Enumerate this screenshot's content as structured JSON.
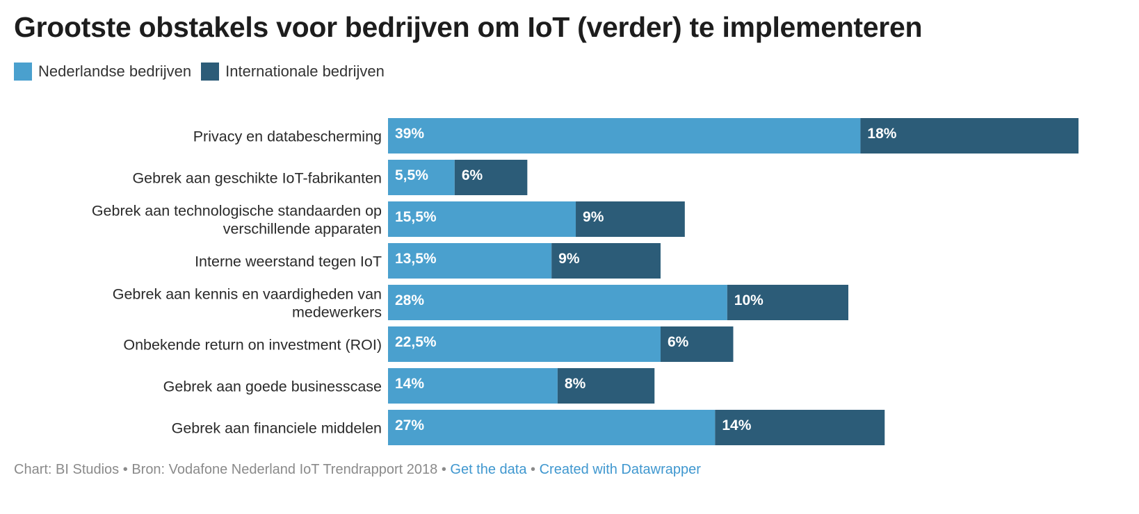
{
  "title": "Grootste obstakels voor bedrijven om IoT (verder) te implementeren",
  "colors": {
    "nederlandse": "#4aa0ce",
    "internationale": "#2c5c78",
    "bar_text": "#ffffff",
    "label_text": "#2a2a2a"
  },
  "chart_data": {
    "type": "bar",
    "orientation": "horizontal",
    "stacked": true,
    "title": "Grootste obstakels voor bedrijven om IoT (verder) te implementeren",
    "legend_position": "top-left",
    "categories": [
      [
        "Privacy en databescherming"
      ],
      [
        "Gebrek aan geschikte IoT-fabrikanten"
      ],
      [
        "Gebrek aan technologische standaarden op",
        "verschillende apparaten"
      ],
      [
        "Interne weerstand tegen IoT"
      ],
      [
        "Gebrek aan kennis en vaardigheden van",
        "medewerkers"
      ],
      [
        "Onbekende return on investment (ROI)"
      ],
      [
        "Gebrek aan goede businesscase"
      ],
      [
        "Gebrek aan financiele middelen"
      ]
    ],
    "series": [
      {
        "name": "Nederlandse bedrijven",
        "values": [
          39,
          5.5,
          15.5,
          13.5,
          28,
          22.5,
          14,
          27
        ],
        "labels": [
          "39%",
          "5,5%",
          "15,5%",
          "13,5%",
          "28%",
          "22,5%",
          "14%",
          "27%"
        ]
      },
      {
        "name": "Internationale bedrijven",
        "values": [
          18,
          6,
          9,
          9,
          10,
          6,
          8,
          14
        ],
        "labels": [
          "18%",
          "6%",
          "9%",
          "9%",
          "10%",
          "6%",
          "8%",
          "14%"
        ]
      }
    ],
    "xlim": [
      0,
      57
    ],
    "grid": false
  },
  "footer": {
    "chart_credit": "Chart: BI Studios",
    "separator": " • ",
    "source": "Bron: Vodafone Nederland IoT Trendrapport 2018",
    "get_data": "Get the data",
    "created_with": "Created with Datawrapper"
  }
}
